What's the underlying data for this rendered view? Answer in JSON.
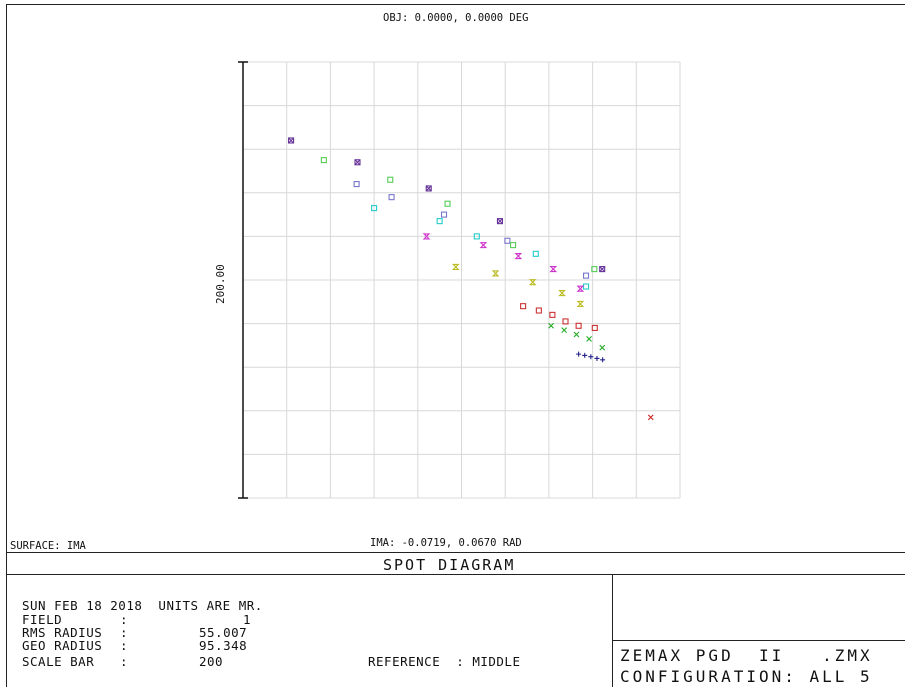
{
  "header": {
    "obj_label": "OBJ: 0.0000, 0.0000 DEG",
    "surface_label": "SURFACE: IMA",
    "ima_label": "IMA: -0.0719, 0.0670 RAD",
    "plot_title": "SPOT DIAGRAM"
  },
  "scale_label": "200.00",
  "info": {
    "date_line": "SUN FEB 18 2018  UNITS ARE MR.",
    "field_key": "FIELD",
    "field_sep": ":",
    "field_val": "1",
    "rms_key": "RMS RADIUS",
    "rms_sep": ":",
    "rms_val": "55.007",
    "geo_key": "GEO RADIUS",
    "geo_sep": ":",
    "geo_val": "95.348",
    "scale_key": "SCALE BAR",
    "scale_sep": ":",
    "scale_val": "200",
    "reference": "REFERENCE  : MIDDLE"
  },
  "footer": {
    "program": "ZEMAX PGD  II   .ZMX",
    "configuration": "CONFIGURATION: ALL 5"
  },
  "chart_data": {
    "type": "scatter",
    "title": "SPOT DIAGRAM",
    "xlabel": "",
    "ylabel": "200.00",
    "xlim": [
      -500,
      500
    ],
    "ylim": [
      -500,
      500
    ],
    "grid": true,
    "series": [
      {
        "color": "#cc3333",
        "marker": "square",
        "points": [
          [
            141,
            -60
          ],
          [
            177,
            -70
          ],
          [
            208,
            -80
          ],
          [
            238,
            -95
          ],
          [
            268,
            -105
          ],
          [
            305,
            -110
          ]
        ]
      },
      {
        "color": "#22aa22",
        "marker": "x",
        "points": [
          [
            205,
            -105
          ],
          [
            235,
            -115
          ],
          [
            263,
            -125
          ],
          [
            292,
            -135
          ],
          [
            322,
            -155
          ]
        ]
      },
      {
        "color": "#22228a",
        "marker": "plus",
        "points": [
          [
            268,
            -170
          ],
          [
            282,
            -173
          ],
          [
            296,
            -176
          ],
          [
            310,
            -180
          ],
          [
            323,
            -183
          ]
        ]
      },
      {
        "color": "#cc2222",
        "marker": "x",
        "points": [
          [
            433,
            -315
          ]
        ]
      },
      {
        "color": "#663399",
        "marker": "square-x",
        "points": [
          [
            -390,
            320
          ],
          [
            -238,
            270
          ],
          [
            -75,
            210
          ],
          [
            88,
            135
          ],
          [
            322,
            25
          ]
        ]
      },
      {
        "color": "#7777cc",
        "marker": "square",
        "points": [
          [
            -240,
            220
          ],
          [
            -160,
            190
          ],
          [
            -40,
            150
          ],
          [
            105,
            90
          ],
          [
            285,
            10
          ]
        ]
      },
      {
        "color": "#55cc55",
        "marker": "square",
        "points": [
          [
            -315,
            275
          ],
          [
            -163,
            230
          ],
          [
            -32,
            175
          ],
          [
            118,
            80
          ],
          [
            304,
            25
          ]
        ]
      },
      {
        "color": "#22cccc",
        "marker": "square",
        "points": [
          [
            -200,
            165
          ],
          [
            -50,
            135
          ],
          [
            35,
            100
          ],
          [
            170,
            60
          ],
          [
            285,
            -15
          ]
        ]
      },
      {
        "color": "#cc33cc",
        "marker": "hourglass",
        "points": [
          [
            -80,
            100
          ],
          [
            50,
            80
          ],
          [
            130,
            55
          ],
          [
            210,
            25
          ],
          [
            272,
            -20
          ]
        ]
      },
      {
        "color": "#bbbb22",
        "marker": "hourglass",
        "points": [
          [
            -13,
            30
          ],
          [
            78,
            15
          ],
          [
            163,
            -5
          ],
          [
            230,
            -30
          ],
          [
            272,
            -55
          ]
        ]
      }
    ]
  }
}
